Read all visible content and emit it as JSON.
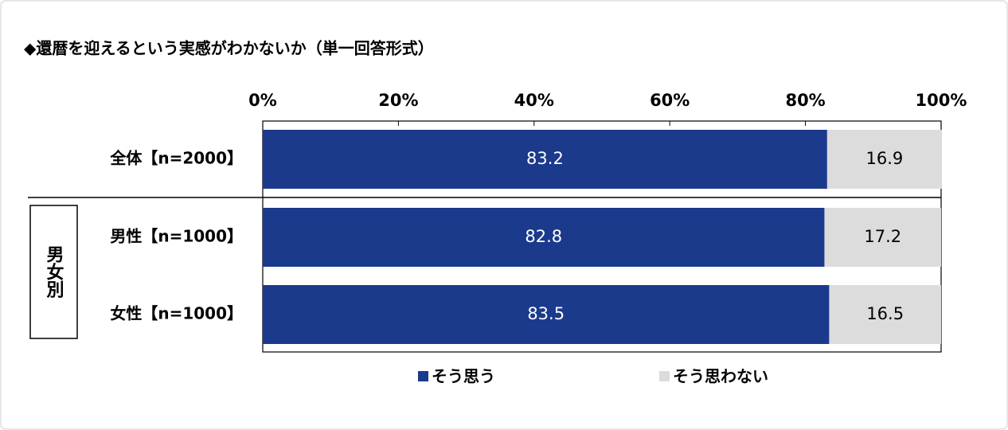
{
  "chart_data": {
    "type": "stacked-bar-horizontal",
    "title": "◆還暦を迎えるという実感がわかないか（単一回答形式）",
    "categories": [
      "全体【n=2000】",
      "男性【n=1000】",
      "女性【n=1000】"
    ],
    "group_label": "男女別",
    "series": [
      {
        "name": "そう思う",
        "color": "#1b3a8c",
        "values": [
          83.2,
          82.8,
          83.5
        ]
      },
      {
        "name": "そう思わない",
        "color": "#dcdcdc",
        "values": [
          16.9,
          17.2,
          16.5
        ]
      }
    ],
    "xlim": [
      0,
      100
    ],
    "xticks": [
      {
        "value": 0,
        "label": "0%"
      },
      {
        "value": 20,
        "label": "20%"
      },
      {
        "value": 40,
        "label": "40%"
      },
      {
        "value": 60,
        "label": "60%"
      },
      {
        "value": 80,
        "label": "80%"
      },
      {
        "value": 100,
        "label": "100%"
      }
    ]
  }
}
